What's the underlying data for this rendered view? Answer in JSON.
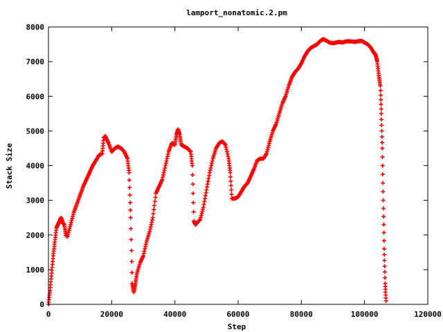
{
  "chart_data": {
    "type": "scatter",
    "title": "lamport_nonatomic.2.pm",
    "xlabel": "Step",
    "ylabel": "Stack Size",
    "xlim": [
      0,
      120000
    ],
    "ylim": [
      0,
      8000
    ],
    "x_ticks": [
      "0",
      "20000",
      "40000",
      "60000",
      "80000",
      "100000",
      "120000"
    ],
    "y_ticks": [
      "0",
      "1000",
      "2000",
      "3000",
      "4000",
      "5000",
      "6000",
      "7000",
      "8000"
    ],
    "grid": false,
    "legend": "none",
    "marker": "plus",
    "color": "#ff0000",
    "series": [
      {
        "x": [
          0,
          500,
          1000,
          1500,
          2000,
          2500,
          3000,
          3500,
          4000,
          4500,
          5000,
          5500,
          6000,
          7000,
          8000,
          9000,
          10000,
          11000,
          12000,
          13000,
          14000,
          15000,
          16000,
          17000,
          17500,
          18000,
          19000,
          20000,
          21000,
          22000,
          23000,
          24000,
          25000,
          25500,
          26000,
          26500,
          27000,
          27500,
          28000,
          29000,
          30000,
          31000,
          32000,
          33000,
          34000,
          35000,
          36000,
          37000,
          38000,
          39000,
          40000,
          40500,
          41000,
          41500,
          42000,
          43000,
          44000,
          45000,
          45500,
          46000,
          46500,
          47000,
          48000,
          49000,
          50000,
          51000,
          52000,
          53000,
          54000,
          55000,
          56000,
          57000,
          57500,
          58000,
          59000,
          60000,
          61000,
          62000,
          63000,
          64000,
          65000,
          66000,
          67000,
          68000,
          69000,
          70000,
          71000,
          72000,
          73000,
          74000,
          75000,
          76000,
          77000,
          78000,
          79000,
          80000,
          81000,
          82000,
          83000,
          84000,
          85000,
          86000,
          87000,
          88000,
          89000,
          90000,
          91000,
          92000,
          93000,
          94000,
          95000,
          96000,
          97000,
          98000,
          99000,
          100000,
          101000,
          102000,
          103000,
          103500,
          104000,
          104500,
          105000,
          105300,
          105600,
          105900,
          106200,
          106500,
          106800
        ],
        "y": [
          0,
          400,
          900,
          1400,
          1800,
          2200,
          2300,
          2400,
          2500,
          2350,
          2300,
          2000,
          1950,
          2300,
          2650,
          2900,
          3150,
          3400,
          3600,
          3800,
          4000,
          4150,
          4300,
          4350,
          4800,
          4850,
          4650,
          4400,
          4500,
          4550,
          4500,
          4400,
          4200,
          3800,
          2500,
          600,
          350,
          600,
          900,
          1200,
          1400,
          1800,
          2100,
          2500,
          3200,
          3400,
          3600,
          4000,
          4400,
          4650,
          4600,
          4900,
          5050,
          4900,
          4600,
          4550,
          4500,
          4400,
          4000,
          2400,
          2300,
          2350,
          2450,
          2800,
          3300,
          3800,
          4200,
          4500,
          4650,
          4700,
          4600,
          4200,
          3800,
          3050,
          3050,
          3100,
          3250,
          3400,
          3500,
          3700,
          3900,
          4150,
          4200,
          4200,
          4350,
          4700,
          5000,
          5200,
          5500,
          5800,
          6000,
          6300,
          6550,
          6700,
          6800,
          6950,
          7150,
          7300,
          7400,
          7450,
          7500,
          7600,
          7650,
          7600,
          7550,
          7530,
          7550,
          7570,
          7550,
          7580,
          7590,
          7580,
          7570,
          7590,
          7600,
          7550,
          7500,
          7400,
          7250,
          7200,
          7000,
          6600,
          6300,
          5500,
          4500,
          3000,
          1600,
          600,
          100
        ]
      }
    ]
  }
}
